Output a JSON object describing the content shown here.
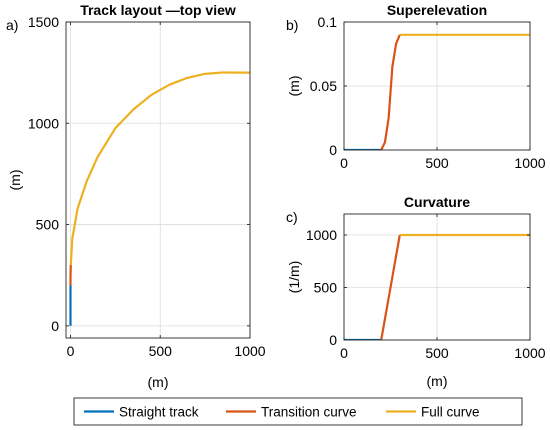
{
  "chart_data": [
    {
      "id": "a",
      "type": "line",
      "panel_label": "a)",
      "title": "Track layout —top view",
      "xlabel": "(m)",
      "ylabel": "(m)",
      "xlim": [
        -25,
        1000
      ],
      "ylim": [
        -60,
        1500
      ],
      "xticks": [
        0,
        500,
        1000
      ],
      "yticks": [
        0,
        500,
        1000,
        1500
      ],
      "grid": true,
      "series": [
        {
          "name": "Straight track",
          "color": "#0072BD",
          "x": [
            0,
            0
          ],
          "y": [
            0,
            200
          ]
        },
        {
          "name": "Transition curve",
          "color": "#D95319",
          "x": [
            0,
            0.2,
            1.7
          ],
          "y": [
            200,
            250,
            300
          ]
        },
        {
          "name": "Full curve",
          "color": "#EDB120",
          "x": [
            1.7,
            10,
            40,
            90,
            150,
            250,
            350,
            450,
            550,
            650,
            750,
            850,
            950,
            1000
          ],
          "y": [
            300,
            430,
            580,
            713,
            832,
            976,
            1068,
            1140,
            1190,
            1224,
            1244,
            1251,
            1250,
            1250
          ]
        }
      ]
    },
    {
      "id": "b",
      "type": "line",
      "panel_label": "b)",
      "title": "Superelevation",
      "xlabel": "",
      "ylabel": "(m)",
      "xlim": [
        0,
        1000
      ],
      "ylim": [
        0,
        0.1
      ],
      "xticks": [
        0,
        500,
        1000
      ],
      "yticks": [
        0,
        0.05,
        0.1
      ],
      "grid": true,
      "series": [
        {
          "name": "Straight track",
          "color": "#0072BD",
          "x": [
            0,
            200
          ],
          "y": [
            0,
            0
          ]
        },
        {
          "name": "Transition curve",
          "color": "#D95319",
          "x": [
            200,
            220,
            240,
            250,
            260,
            280,
            300
          ],
          "y": [
            0,
            0.006,
            0.025,
            0.045,
            0.065,
            0.083,
            0.09
          ]
        },
        {
          "name": "Full curve",
          "color": "#EDB120",
          "x": [
            300,
            1000
          ],
          "y": [
            0.09,
            0.09
          ]
        }
      ]
    },
    {
      "id": "c",
      "type": "line",
      "panel_label": "c)",
      "title": "Curvature",
      "xlabel": "(m)",
      "ylabel": "(1/m)",
      "xlim": [
        0,
        1000
      ],
      "ylim": [
        0,
        1200
      ],
      "xticks": [
        0,
        500,
        1000
      ],
      "yticks": [
        0,
        500,
        1000
      ],
      "grid": true,
      "series": [
        {
          "name": "Straight track",
          "color": "#0072BD",
          "x": [
            0,
            200
          ],
          "y": [
            0,
            0
          ]
        },
        {
          "name": "Transition curve",
          "color": "#D95319",
          "x": [
            200,
            300
          ],
          "y": [
            0,
            1000
          ]
        },
        {
          "name": "Full curve",
          "color": "#EDB120",
          "x": [
            300,
            1000
          ],
          "y": [
            1000,
            1000
          ]
        }
      ]
    }
  ],
  "legend": {
    "placement": "bottom",
    "entries": [
      {
        "label": "Straight track",
        "color": "#0072BD"
      },
      {
        "label": "Transition curve",
        "color": "#D95319"
      },
      {
        "label": "Full curve",
        "color": "#EDB120"
      }
    ]
  }
}
